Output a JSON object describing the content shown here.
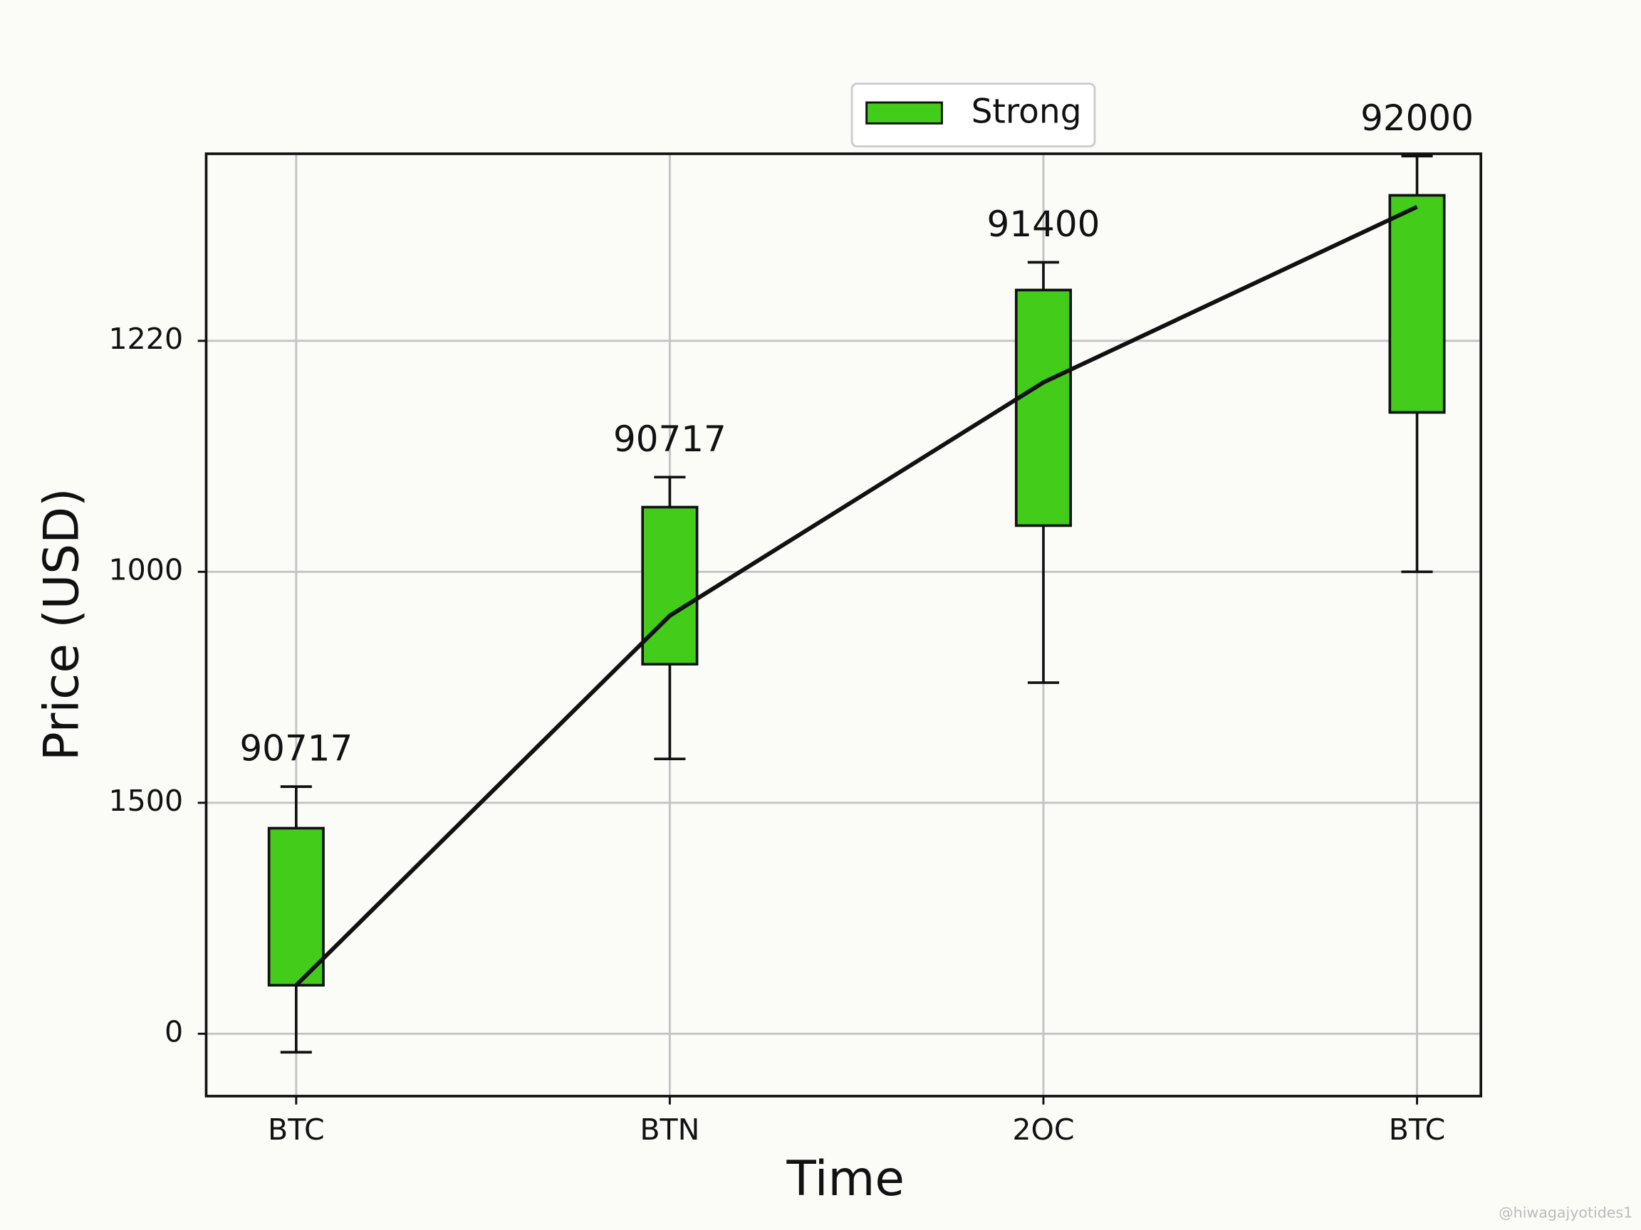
{
  "chart_data": {
    "type": "candlestick",
    "x_label": "Time",
    "y_label": "Price (USD)",
    "categories": [
      "BTC",
      "BTN",
      "2OC",
      "BTC"
    ],
    "series": [
      {
        "name": "Strong",
        "color": "#44cc1a",
        "open": [
          0.21,
          1.6,
          2.2,
          2.69
        ],
        "close": [
          0.89,
          2.28,
          3.22,
          3.63
        ],
        "high": [
          1.07,
          2.41,
          3.34,
          3.8
        ],
        "low": [
          -0.08,
          1.19,
          1.52,
          2.0
        ]
      }
    ],
    "trend": {
      "color": "#111111",
      "values": [
        0.21,
        1.81,
        2.82,
        3.58
      ]
    },
    "annotations": [
      "90717",
      "90717",
      "91400",
      "92000"
    ],
    "ylim": [
      -0.27,
      3.81
    ],
    "yticks": [
      {
        "value": 0,
        "label": "0"
      },
      {
        "value": 1,
        "label": "1500"
      },
      {
        "value": 2,
        "label": "1000"
      },
      {
        "value": 3,
        "label": "1220"
      }
    ],
    "grid": true,
    "legend": "upper center",
    "watermark": "@hiwagajyotides1"
  }
}
